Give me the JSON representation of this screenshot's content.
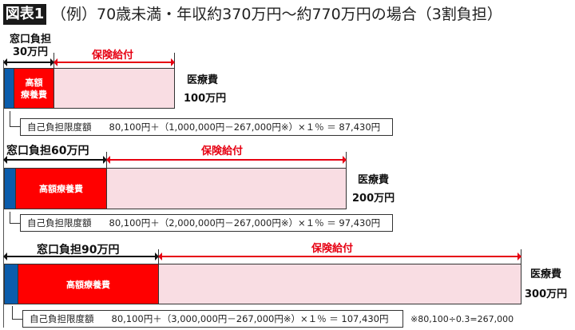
{
  "header": {
    "tag": "図表1",
    "title": "（例）70歳未満・年収約370万円～約770万円の場合（3割負担）"
  },
  "colors": {
    "self_pay": "#0b5cab",
    "high_cost": "#ff0000",
    "insurance": "#f9dde3",
    "accent": "#e60012"
  },
  "rows": [
    {
      "window_label_1": "窓口負担",
      "window_label_2": "30万円",
      "insurance_label": "保険給付",
      "high_cost_label_1": "高額",
      "high_cost_label_2": "療養費",
      "cost_label": "医療費",
      "cost_value": "100万円",
      "limit_label": "自己負担限度額",
      "formula": "80,100円＋（1,000,000円－267,000円※）×１％ ＝ 87,430円"
    },
    {
      "window_label": "窓口負担60万円",
      "insurance_label": "保険給付",
      "high_cost_label": "高額療養費",
      "cost_label": "医療費",
      "cost_value": "200万円",
      "limit_label": "自己負担限度額",
      "formula": "80,100円＋（2,000,000円－267,000円※）×１％ ＝ 97,430円"
    },
    {
      "window_label": "窓口負担90万円",
      "insurance_label": "保険給付",
      "high_cost_label": "高額療養費",
      "cost_label": "医療費",
      "cost_value": "300万円",
      "limit_label": "自己負担限度額",
      "formula": "80,100円＋（3,000,000円－267,000円※）×１％ ＝ 107,430円"
    }
  ],
  "note": "※80,100÷0.3=267,000"
}
